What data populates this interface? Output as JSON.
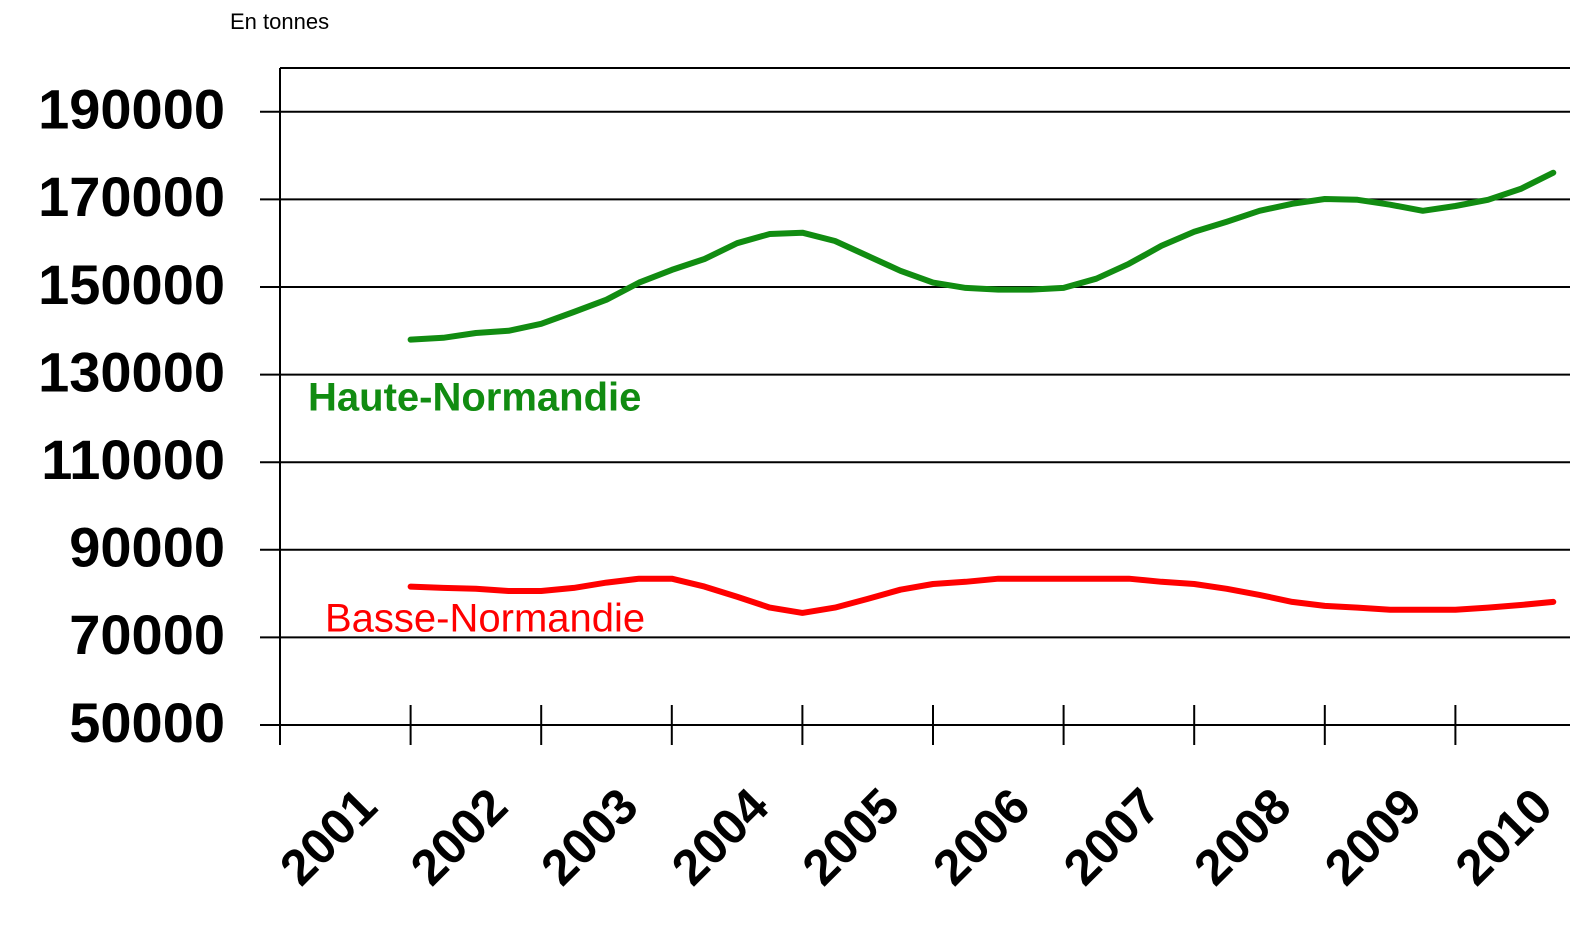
{
  "chart_data": {
    "type": "line",
    "subtitle": "En tonnes",
    "categories": [
      "2001",
      null,
      null,
      null,
      "2002",
      null,
      null,
      null,
      "2003",
      null,
      null,
      null,
      "2004",
      null,
      null,
      null,
      "2005",
      null,
      null,
      null,
      "2006",
      null,
      null,
      null,
      "2007",
      null,
      null,
      null,
      "2008",
      null,
      null,
      null,
      "2009",
      null,
      null,
      null,
      "2010",
      null,
      null,
      null
    ],
    "series": [
      {
        "name": "Haute-Normandie",
        "color": "#118c11",
        "values": [
          null,
          null,
          null,
          null,
          138000,
          138400,
          139500,
          140000,
          141600,
          144300,
          147100,
          151000,
          153900,
          156400,
          160000,
          162100,
          162400,
          160500,
          157100,
          153700,
          151000,
          149800,
          149400,
          149400,
          149800,
          151900,
          155300,
          159400,
          162600,
          164900,
          167400,
          169000,
          170100,
          169900,
          168800,
          167400,
          168500,
          169900,
          172400,
          176100
        ]
      },
      {
        "name": "Basse-Normandie",
        "color": "#ff0000",
        "values": [
          null,
          null,
          null,
          null,
          81600,
          81300,
          81100,
          80600,
          80600,
          81300,
          82500,
          83400,
          83400,
          81600,
          79300,
          76800,
          75600,
          76800,
          78800,
          80900,
          82200,
          82700,
          83400,
          83400,
          83400,
          83400,
          83400,
          82700,
          82200,
          81100,
          79700,
          78100,
          77200,
          76800,
          76300,
          76300,
          76300,
          76800,
          77400,
          78100
        ]
      }
    ],
    "ylim": [
      50000,
      200000
    ],
    "yticks": [
      50000,
      70000,
      90000,
      110000,
      130000,
      150000,
      170000,
      190000
    ],
    "grid": true
  }
}
